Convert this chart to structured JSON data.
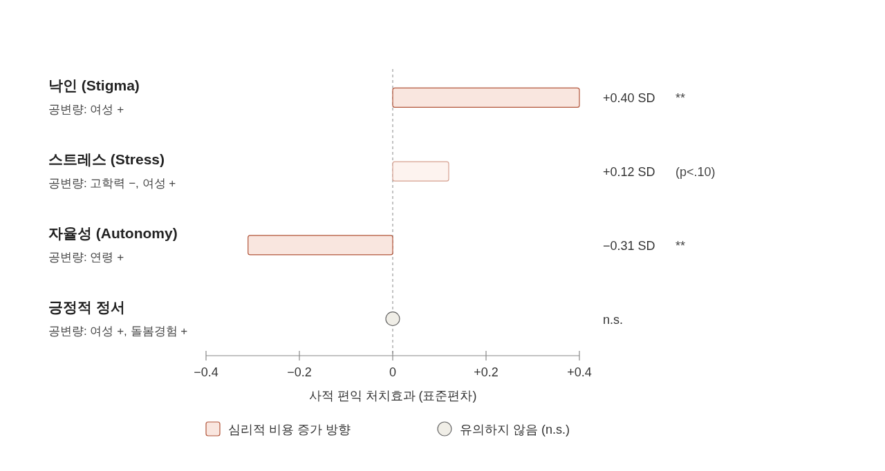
{
  "chart_data": {
    "type": "bar",
    "orientation": "horizontal",
    "categories": [
      "낙인 (Stigma)\n공변량: 여성 +",
      "스트레스 (Stress)\n공변량: 고학력 −, 여성 +",
      "자율성 (Autonomy)\n공변량: 연령 +",
      "긍정적 정서\n공변량: 여성 +, 돌봄경험 +"
    ],
    "series": [
      {
        "name": "심리적 비용 증가 방향",
        "color": "#f9e6df",
        "colors": [
          "#f9e6df",
          "#fdf3ef",
          "#f9e6df",
          null
        ],
        "values": [
          0.4,
          0.12,
          -0.31,
          null
        ]
      },
      {
        "name": "유의하지 않음 (n.s.)",
        "type": "scatter",
        "marker": "circle",
        "color": "#f0eee7",
        "values": [
          null,
          null,
          null,
          0
        ]
      }
    ],
    "value_labels": [
      "+0.40 SD",
      "+0.12 SD",
      "−0.31 SD",
      "n.s."
    ],
    "annotations": [
      "**",
      "(p<.10)",
      "**",
      null
    ],
    "xlim": [
      -0.4,
      0.4
    ],
    "xticks": [
      {
        "value": -0.4,
        "label": "−0.4"
      },
      {
        "value": -0.2,
        "label": "−0.2"
      },
      0,
      {
        "value": 0.2,
        "label": "+0.2"
      },
      {
        "value": 0.4,
        "label": "+0.4"
      }
    ],
    "xlabel": "사적 편익 처치효과 (표준편차)",
    "ref_lines": [
      {
        "axis": "x",
        "value": 0,
        "color": "#999999",
        "line_style": "dashed"
      }
    ],
    "grid": false,
    "legend": "bottom"
  }
}
